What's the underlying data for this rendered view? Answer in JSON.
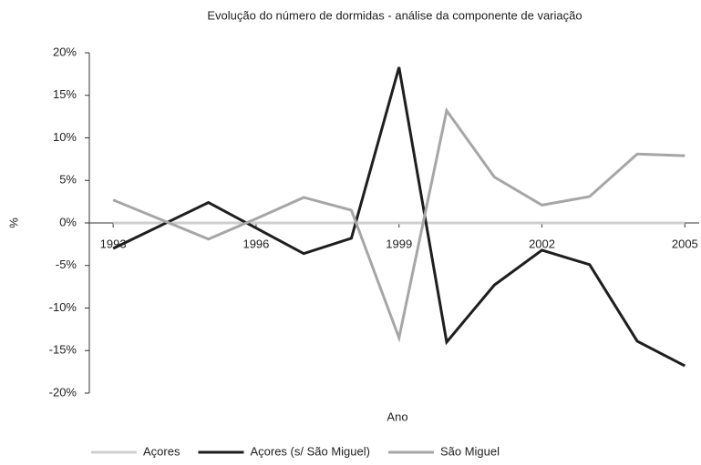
{
  "chart_data": {
    "type": "line",
    "title": "Evolução do número de dormidas - análise da componente de variação",
    "x": [
      1993,
      1994,
      1995,
      1996,
      1997,
      1998,
      1999,
      2000,
      2001,
      2002,
      2003,
      2004,
      2005
    ],
    "series": [
      {
        "name": "Açores",
        "color": "#cfcfcf",
        "values": [
          0,
          0,
          0,
          0,
          0,
          0,
          0,
          0,
          0,
          0,
          0,
          0,
          0
        ]
      },
      {
        "name": "Açores (s/ São Miguel)",
        "color": "#1e1e1e",
        "values": [
          -3,
          -0.3,
          2.4,
          -0.6,
          -3.6,
          -1.8,
          18.3,
          -14,
          -7.3,
          -3.2,
          -4.9,
          -13.9,
          -16.8
        ]
      },
      {
        "name": "São Miguel",
        "color": "#a6a6a6",
        "values": [
          2.7,
          0.4,
          -1.9,
          0.5,
          3,
          1.5,
          -13.5,
          13.2,
          5.4,
          2.1,
          3.1,
          8.1,
          7.9
        ]
      }
    ],
    "xlim": [
      1992.5,
      2005.3
    ],
    "xticks": [
      1993,
      1996,
      1999,
      2002,
      2005
    ],
    "ylim": [
      -20,
      20
    ],
    "yticks": [
      {
        "value": -20,
        "label": "-20%"
      },
      {
        "value": -15,
        "label": "-15%"
      },
      {
        "value": -10,
        "label": "-10%"
      },
      {
        "value": -5,
        "label": "-5%"
      },
      {
        "value": 0,
        "label": "0%"
      },
      {
        "value": 5,
        "label": "5%"
      },
      {
        "value": 10,
        "label": "10%"
      },
      {
        "value": 15,
        "label": "15%"
      },
      {
        "value": 20,
        "label": "20%"
      }
    ],
    "xlabel": "Ano",
    "ylabel": "%",
    "legend": "bottom"
  }
}
